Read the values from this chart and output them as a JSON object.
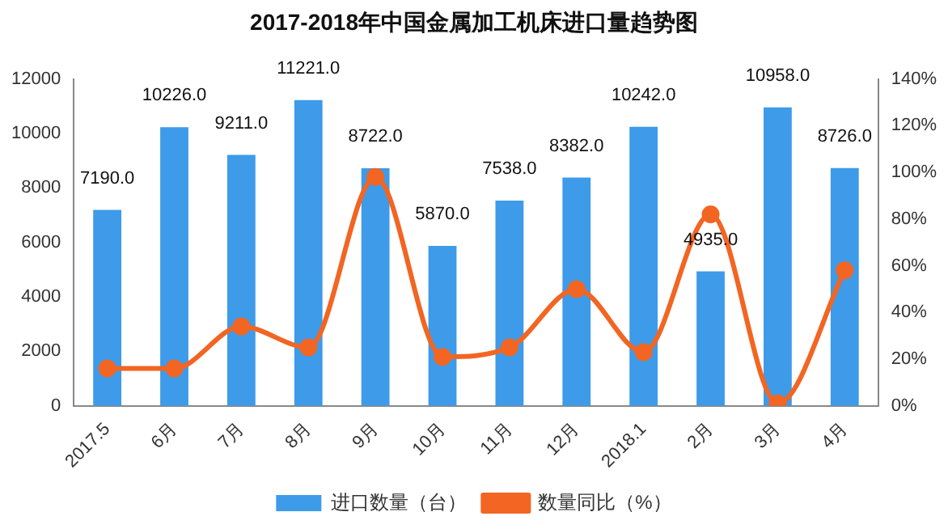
{
  "chart_data": {
    "type": "bar",
    "title": "2017-2018年中国金属加工机床进口量趋势图",
    "categories": [
      "2017.5",
      "6月",
      "7月",
      "8月",
      "9月",
      "10月",
      "11月",
      "12月",
      "2018.1",
      "2月",
      "3月",
      "4月"
    ],
    "series": [
      {
        "name": "进口数量（台）",
        "color": "#3d9be9",
        "values": [
          7190,
          10226,
          9211,
          11221,
          8722,
          5870,
          7538,
          8382,
          10242,
          4935,
          10958,
          8726
        ],
        "value_labels": [
          "7190.0",
          "10226.0",
          "9211.0",
          "11221.0",
          "8722.0",
          "5870.0",
          "7538.0",
          "8382.0",
          "10242.0",
          "4935.0",
          "10958.0",
          "8726.0"
        ]
      },
      {
        "name": "数量同比（%）",
        "type": "line",
        "axis": "y2",
        "color": "#f26522",
        "marker": "circle",
        "values": [
          16,
          16,
          34,
          25,
          98,
          21,
          25,
          50,
          23,
          82,
          1,
          58
        ]
      }
    ],
    "ylim": [
      0,
      12000
    ],
    "yticks": [
      0,
      2000,
      4000,
      6000,
      8000,
      10000,
      12000
    ],
    "y2lim": [
      0,
      140
    ],
    "y2ticks": [
      {
        "value": 0,
        "label": "0%"
      },
      {
        "value": 20,
        "label": "20%"
      },
      {
        "value": 40,
        "label": "40%"
      },
      {
        "value": 60,
        "label": "60%"
      },
      {
        "value": 80,
        "label": "80%"
      },
      {
        "value": 100,
        "label": "100%"
      },
      {
        "value": 120,
        "label": "120%"
      },
      {
        "value": 140,
        "label": "140%"
      }
    ],
    "grid": false,
    "legend": "bottom"
  }
}
